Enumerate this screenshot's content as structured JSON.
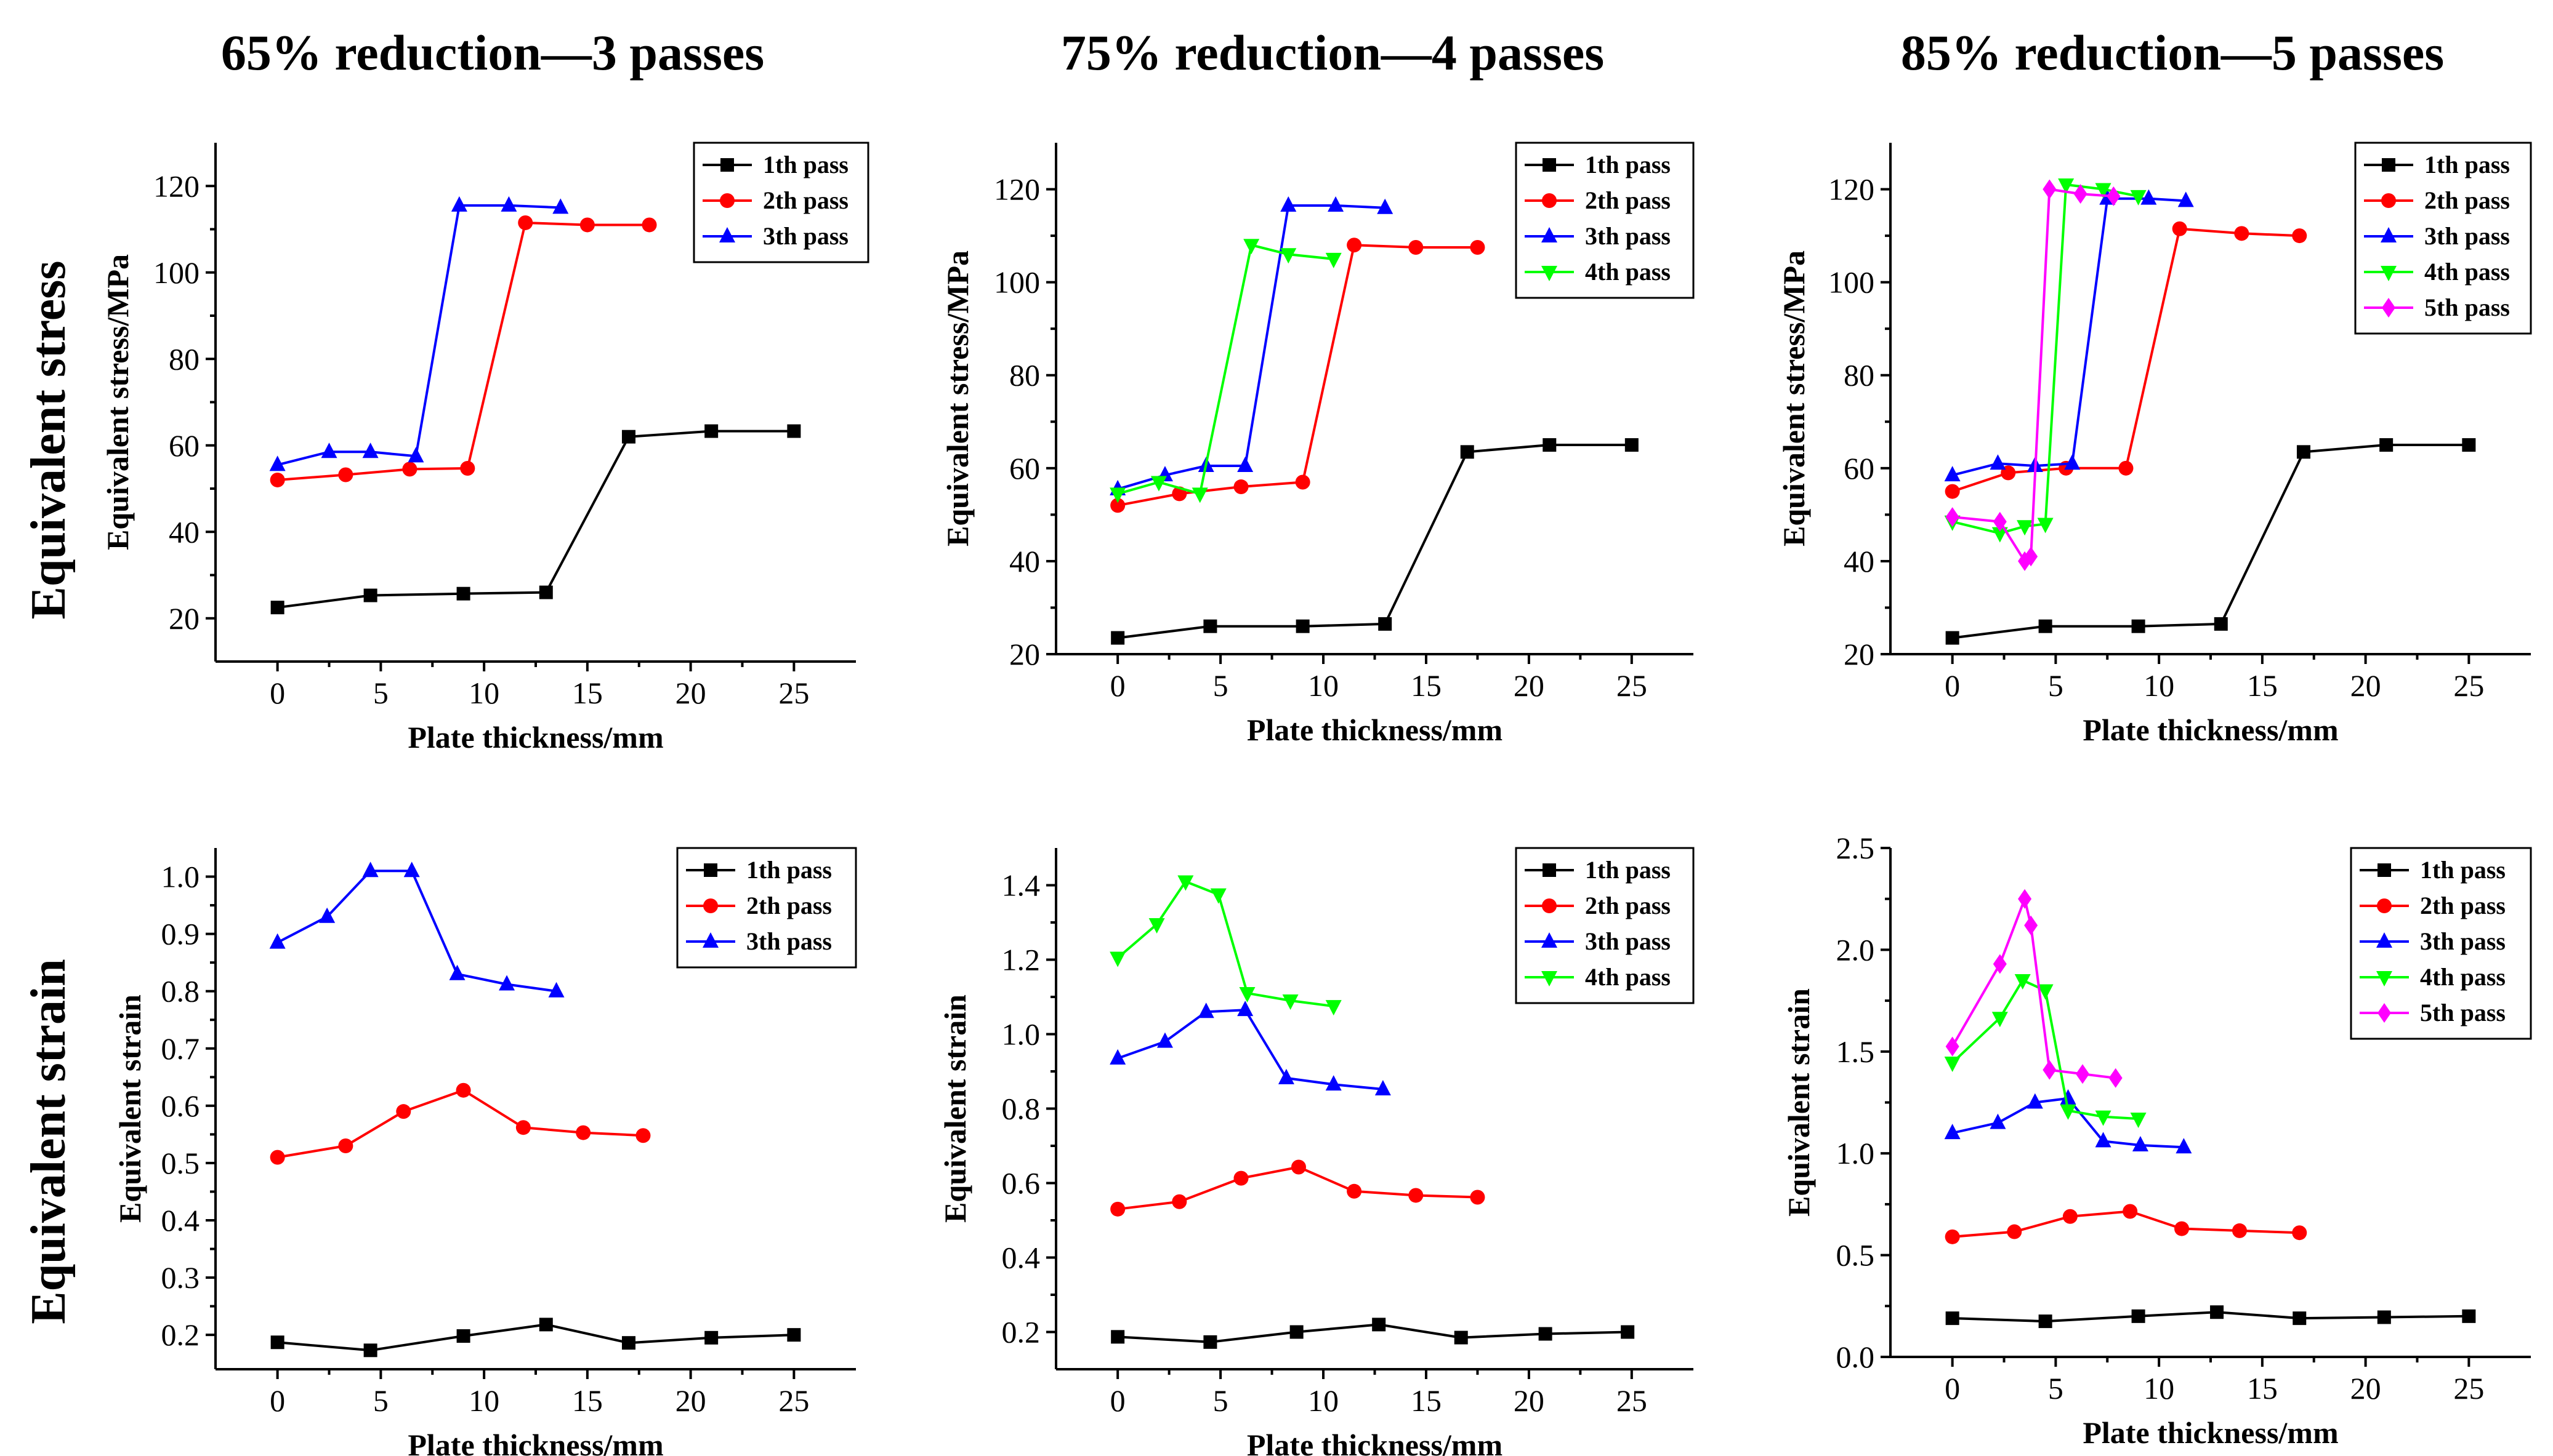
{
  "figure": {
    "column_titles": [
      "65% reduction—3 passes",
      "75% reduction—4 passes",
      "85% reduction—5 passes"
    ],
    "row_titles": [
      "Equivalent stress",
      "Equivalent strain"
    ]
  },
  "series_colors": {
    "1th pass": "#000000",
    "2th pass": "#ff0000",
    "3th pass": "#0000ff",
    "4th pass": "#00ff00",
    "5th pass": "#ff00ff"
  },
  "series_markers": {
    "1th pass": "square",
    "2th pass": "circle",
    "3th pass": "triangle-up",
    "4th pass": "triangle-down",
    "5th pass": "diamond"
  },
  "chart_data": [
    {
      "type": "line",
      "id": "stress-65",
      "xlabel": "Plate thickness/mm",
      "ylabel": "Equivalent stress/MPa",
      "xlim": [
        -3,
        28
      ],
      "ylim": [
        10,
        130
      ],
      "xticks": [
        0,
        5,
        10,
        15,
        20,
        25
      ],
      "yticks": [
        20,
        40,
        60,
        80,
        100,
        120
      ],
      "legend": "top-right",
      "series": [
        {
          "name": "1th pass",
          "x": [
            0,
            4.5,
            9,
            13,
            17,
            21,
            25
          ],
          "y": [
            22.5,
            25.3,
            25.7,
            26,
            62,
            63.3,
            63.3
          ]
        },
        {
          "name": "2th pass",
          "x": [
            0,
            3.3,
            6.4,
            9.2,
            12,
            15,
            18
          ],
          "y": [
            52,
            53.2,
            54.5,
            54.7,
            111.5,
            111,
            111
          ]
        },
        {
          "name": "3th pass",
          "x": [
            0,
            2.5,
            4.5,
            6.7,
            8.8,
            11.2,
            13.7
          ],
          "y": [
            55.5,
            58.5,
            58.5,
            57.5,
            115.5,
            115.5,
            115
          ]
        }
      ]
    },
    {
      "type": "line",
      "id": "stress-75",
      "xlabel": "Plate thickness/mm",
      "ylabel": "Equivalent stress/MPa",
      "xlim": [
        -3,
        28
      ],
      "ylim": [
        20,
        130
      ],
      "xticks": [
        0,
        5,
        10,
        15,
        20,
        25
      ],
      "yticks": [
        20,
        40,
        60,
        80,
        100,
        120
      ],
      "legend": "top-right",
      "series": [
        {
          "name": "1th pass",
          "x": [
            0,
            4.5,
            9,
            13,
            17,
            21,
            25
          ],
          "y": [
            23.5,
            26,
            26,
            26.5,
            63.5,
            65,
            65
          ]
        },
        {
          "name": "2th pass",
          "x": [
            0,
            3,
            6,
            9,
            11.5,
            14.5,
            17.5
          ],
          "y": [
            52,
            54.5,
            56,
            57,
            108,
            107.5,
            107.5
          ]
        },
        {
          "name": "3th pass",
          "x": [
            0,
            2.3,
            4.3,
            6.2,
            8.3,
            10.6,
            13
          ],
          "y": [
            55.5,
            58.5,
            60.5,
            60.5,
            116.5,
            116.5,
            116
          ]
        },
        {
          "name": "4th pass",
          "x": [
            0,
            2,
            4,
            6.5,
            8.3,
            10.5
          ],
          "y": [
            54.5,
            57,
            54.5,
            108,
            106,
            105
          ]
        }
      ]
    },
    {
      "type": "line",
      "id": "stress-85",
      "xlabel": "Plate thickness/mm",
      "ylabel": "Equivalent stress/MPa",
      "xlim": [
        -3,
        28
      ],
      "ylim": [
        20,
        130
      ],
      "xticks": [
        0,
        5,
        10,
        15,
        20,
        25
      ],
      "yticks": [
        20,
        40,
        60,
        80,
        100,
        120
      ],
      "legend": "top-right",
      "series": [
        {
          "name": "1th pass",
          "x": [
            0,
            4.5,
            9,
            13,
            17,
            21,
            25
          ],
          "y": [
            23.5,
            26,
            26,
            26.5,
            63.5,
            65,
            65
          ]
        },
        {
          "name": "2th pass",
          "x": [
            0,
            2.7,
            5.5,
            8.4,
            11,
            14,
            16.8
          ],
          "y": [
            55,
            59,
            60,
            60,
            111.5,
            110.5,
            110
          ]
        },
        {
          "name": "3th pass",
          "x": [
            0,
            2.2,
            4,
            5.8,
            7.5,
            9.5,
            11.3
          ],
          "y": [
            58.5,
            61,
            60.5,
            61,
            118,
            118,
            117.5
          ]
        },
        {
          "name": "4th pass",
          "x": [
            0,
            2.3,
            3.5,
            4.5,
            5.5,
            7.3,
            9
          ],
          "y": [
            48.5,
            46,
            47.5,
            48,
            121,
            120,
            118.5
          ]
        },
        {
          "name": "5th pass",
          "x": [
            0,
            2.3,
            3.5,
            3.8,
            4.7,
            6.2,
            7.8
          ],
          "y": [
            49.5,
            48.5,
            40,
            41,
            120,
            119,
            118.5
          ]
        }
      ]
    },
    {
      "type": "line",
      "id": "strain-65",
      "xlabel": "Plate thickness/mm",
      "ylabel": "Equivalent strain",
      "xlim": [
        -3,
        28
      ],
      "ylim": [
        0.14,
        1.05
      ],
      "xticks": [
        0,
        5,
        10,
        15,
        20,
        25
      ],
      "yticks": [
        0.2,
        0.3,
        0.4,
        0.5,
        0.6,
        0.7,
        0.8,
        0.9,
        1.0
      ],
      "legend": "top-right",
      "series": [
        {
          "name": "1th pass",
          "x": [
            0,
            4.5,
            9,
            13,
            17,
            21,
            25
          ],
          "y": [
            0.187,
            0.173,
            0.198,
            0.218,
            0.186,
            0.195,
            0.2
          ]
        },
        {
          "name": "2th pass",
          "x": [
            0,
            3.3,
            6.1,
            9,
            11.9,
            14.8,
            17.7
          ],
          "y": [
            0.51,
            0.53,
            0.59,
            0.627,
            0.562,
            0.553,
            0.548
          ]
        },
        {
          "name": "3th pass",
          "x": [
            0,
            2.4,
            4.5,
            6.5,
            8.7,
            11.1,
            13.5
          ],
          "y": [
            0.885,
            0.93,
            1.01,
            1.01,
            0.83,
            0.812,
            0.8
          ]
        }
      ]
    },
    {
      "type": "line",
      "id": "strain-75",
      "xlabel": "Plate thickness/mm",
      "ylabel": "Equivalent strain",
      "xlim": [
        -3,
        28
      ],
      "ylim": [
        0.1,
        1.5
      ],
      "xticks": [
        0,
        5,
        10,
        15,
        20,
        25
      ],
      "yticks": [
        0.2,
        0.4,
        0.6,
        0.8,
        1.0,
        1.2,
        1.4
      ],
      "legend": "top-right",
      "series": [
        {
          "name": "1th pass",
          "x": [
            0,
            4.5,
            8.7,
            12.7,
            16.7,
            20.8,
            24.8
          ],
          "y": [
            0.187,
            0.173,
            0.2,
            0.22,
            0.185,
            0.195,
            0.2
          ]
        },
        {
          "name": "2th pass",
          "x": [
            0,
            3,
            6,
            8.8,
            11.5,
            14.5,
            17.5
          ],
          "y": [
            0.53,
            0.55,
            0.613,
            0.643,
            0.578,
            0.567,
            0.562
          ]
        },
        {
          "name": "3th pass",
          "x": [
            0,
            2.3,
            4.3,
            6.2,
            8.2,
            10.5,
            12.9
          ],
          "y": [
            0.935,
            0.98,
            1.06,
            1.065,
            0.882,
            0.865,
            0.852
          ]
        },
        {
          "name": "4th pass",
          "x": [
            0,
            1.9,
            3.3,
            4.9,
            6.3,
            8.4,
            10.5
          ],
          "y": [
            1.205,
            1.295,
            1.41,
            1.375,
            1.11,
            1.09,
            1.075
          ]
        }
      ]
    },
    {
      "type": "line",
      "id": "strain-85",
      "xlabel": "Plate thickness/mm",
      "ylabel": "Equivalent strain",
      "xlim": [
        -3,
        28
      ],
      "ylim": [
        0,
        2.5
      ],
      "xticks": [
        0,
        5,
        10,
        15,
        20,
        25
      ],
      "yticks": [
        0.0,
        0.5,
        1.0,
        1.5,
        2.0,
        2.5
      ],
      "legend": "top-right",
      "series": [
        {
          "name": "1th pass",
          "x": [
            0,
            4.5,
            9,
            12.8,
            16.8,
            20.9,
            25
          ],
          "y": [
            0.19,
            0.175,
            0.2,
            0.22,
            0.19,
            0.195,
            0.2
          ]
        },
        {
          "name": "2th pass",
          "x": [
            0,
            3,
            5.7,
            8.6,
            11.1,
            13.9,
            16.8
          ],
          "y": [
            0.59,
            0.615,
            0.69,
            0.715,
            0.63,
            0.62,
            0.61
          ]
        },
        {
          "name": "3th pass",
          "x": [
            0,
            2.2,
            4,
            5.6,
            7.3,
            9.1,
            11.2
          ],
          "y": [
            1.1,
            1.15,
            1.25,
            1.27,
            1.06,
            1.04,
            1.03
          ]
        },
        {
          "name": "4th pass",
          "x": [
            0,
            2.3,
            3.4,
            4.5,
            5.6,
            7.3,
            9
          ],
          "y": [
            1.445,
            1.665,
            1.85,
            1.8,
            1.21,
            1.18,
            1.17
          ]
        },
        {
          "name": "5th pass",
          "x": [
            0,
            2.3,
            3.5,
            3.8,
            4.7,
            6.3,
            7.9
          ],
          "y": [
            1.525,
            1.93,
            2.25,
            2.12,
            1.41,
            1.39,
            1.37
          ]
        }
      ]
    }
  ]
}
